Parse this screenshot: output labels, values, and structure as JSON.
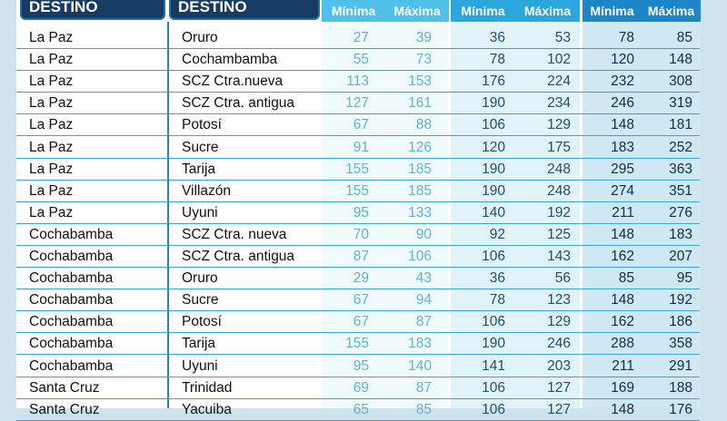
{
  "headers": {
    "origin": "ORIGEN / DESTINO",
    "destination": "ORIGEN / DESTINO",
    "groups": [
      {
        "min": "Mínima",
        "max": "Máxima"
      },
      {
        "min": "Mínima",
        "max": "Máxima"
      },
      {
        "min": "Mínima",
        "max": "Máxima"
      }
    ]
  },
  "colors": {
    "header_dark": "#163c63",
    "group1": "#4fc0e8",
    "group2": "#2ba6dc",
    "group3": "#1c86c8",
    "row_line": "#3aa3d6"
  },
  "rows": [
    {
      "origin": "La Paz",
      "destination": "Oruro",
      "v": [
        "27",
        "39",
        "36",
        "53",
        "78",
        "85"
      ]
    },
    {
      "origin": "La Paz",
      "destination": "Cochambamba",
      "v": [
        "55",
        "73",
        "78",
        "102",
        "120",
        "148"
      ]
    },
    {
      "origin": "La Paz",
      "destination": "SCZ Ctra.nueva",
      "v": [
        "113",
        "153",
        "176",
        "224",
        "232",
        "308"
      ]
    },
    {
      "origin": "La Paz",
      "destination": "SCZ Ctra. antigua",
      "v": [
        "127",
        "161",
        "190",
        "234",
        "246",
        "319"
      ]
    },
    {
      "origin": "La Paz",
      "destination": "Potosí",
      "v": [
        "67",
        "88",
        "106",
        "129",
        "148",
        "181"
      ]
    },
    {
      "origin": "La Paz",
      "destination": "Sucre",
      "v": [
        "91",
        "126",
        "120",
        "175",
        "183",
        "252"
      ]
    },
    {
      "origin": "La Paz",
      "destination": "Tarija",
      "v": [
        "155",
        "185",
        "190",
        "248",
        "295",
        "363"
      ]
    },
    {
      "origin": "La Paz",
      "destination": "Villazón",
      "v": [
        "155",
        "185",
        "190",
        "248",
        "274",
        "351"
      ]
    },
    {
      "origin": "La Paz",
      "destination": "Uyuni",
      "v": [
        "95",
        "133",
        "140",
        "192",
        "211",
        "276"
      ]
    },
    {
      "origin": "Cochabamba",
      "destination": "SCZ Ctra. nueva",
      "v": [
        "70",
        "90",
        "92",
        "125",
        "148",
        "183"
      ]
    },
    {
      "origin": "Cochabamba",
      "destination": "SCZ Ctra. antigua",
      "v": [
        "87",
        "106",
        "106",
        "143",
        "162",
        "207"
      ]
    },
    {
      "origin": "Cochabamba",
      "destination": "Oruro",
      "v": [
        "29",
        "43",
        "36",
        "56",
        "85",
        "95"
      ]
    },
    {
      "origin": "Cochabamba",
      "destination": "Sucre",
      "v": [
        "67",
        "94",
        "78",
        "123",
        "148",
        "192"
      ]
    },
    {
      "origin": "Cochabamba",
      "destination": "Potosí",
      "v": [
        "67",
        "87",
        "106",
        "129",
        "162",
        "186"
      ]
    },
    {
      "origin": "Cochabamba",
      "destination": "Tarija",
      "v": [
        "155",
        "183",
        "190",
        "246",
        "288",
        "358"
      ]
    },
    {
      "origin": "Cochabamba",
      "destination": "Uyuni",
      "v": [
        "95",
        "140",
        "141",
        "203",
        "211",
        "291"
      ]
    },
    {
      "origin": "Santa Cruz",
      "destination": "Trinidad",
      "v": [
        "69",
        "87",
        "106",
        "127",
        "169",
        "188"
      ]
    },
    {
      "origin": "Santa Cruz",
      "destination": "Yacuiba",
      "v": [
        "65",
        "85",
        "106",
        "127",
        "148",
        "176"
      ]
    }
  ]
}
